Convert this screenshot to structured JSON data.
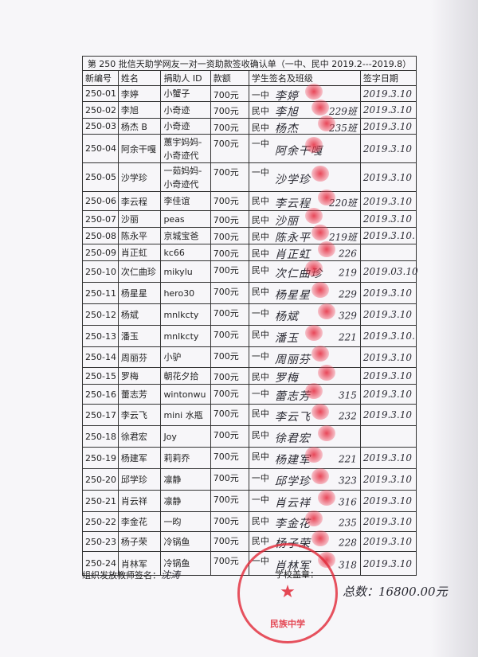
{
  "title": "第 250 批信天助学网友一对一资助款签收确认单（一中、民中 2019.2---2019.8）",
  "columns": [
    "新编号",
    "姓名",
    "捐助人 ID",
    "款额",
    "学生签名及班级",
    "签字日期"
  ],
  "rows": [
    {
      "id": "250-01",
      "name": "李婷",
      "donor": "小蟹子",
      "amount": "700元",
      "school": "一中",
      "signature": "李婷",
      "class": "",
      "date": "2019.3.10"
    },
    {
      "id": "250-02",
      "name": "李旭",
      "donor": "小奇迹",
      "amount": "700元",
      "school": "民中",
      "signature": "李旭",
      "class": "229班",
      "date": "2019.3.10"
    },
    {
      "id": "250-03",
      "name": "杨杰 B",
      "donor": "小奇迹",
      "amount": "700元",
      "school": "民中",
      "signature": "杨杰",
      "class": "235班",
      "date": "2019.3.10"
    },
    {
      "id": "250-04",
      "name": "阿余干嘎",
      "donor": "蕙宇妈妈-小奇迹代",
      "amount": "700元",
      "school": "一中",
      "signature": "阿余干嘎",
      "class": "",
      "date": "2019.3.10"
    },
    {
      "id": "250-05",
      "name": "沙学珍",
      "donor": "一茹妈妈-小奇迹代",
      "amount": "700元",
      "school": "一中",
      "signature": "沙学珍",
      "class": "",
      "date": "2019.3.10"
    },
    {
      "id": "250-06",
      "name": "李云程",
      "donor": "李佳谊",
      "amount": "700元",
      "school": "民中",
      "signature": "李云程",
      "class": "220班",
      "date": "2019.3.10"
    },
    {
      "id": "250-07",
      "name": "沙丽",
      "donor": "peas",
      "amount": "700元",
      "school": "民中",
      "signature": "沙丽",
      "class": "",
      "date": "2019.3.10"
    },
    {
      "id": "250-08",
      "name": "陈永平",
      "donor": "京城宝爸",
      "amount": "700元",
      "school": "民中",
      "signature": "陈永平",
      "class": "219班",
      "date": "2019.3.10."
    },
    {
      "id": "250-09",
      "name": "肖正虹",
      "donor": "kc66",
      "amount": "700元",
      "school": "民中",
      "signature": "肖正虹",
      "class": "226",
      "date": ""
    },
    {
      "id": "250-10",
      "name": "次仁曲珍",
      "donor": "mikylu",
      "amount": "700元",
      "school": "民中",
      "signature": "次仁曲珍",
      "class": "219",
      "date": "2019.03.10"
    },
    {
      "id": "250-11",
      "name": "杨星星",
      "donor": "hero30",
      "amount": "700元",
      "school": "民中",
      "signature": "杨星星",
      "class": "229",
      "date": "2019.3.10"
    },
    {
      "id": "250-12",
      "name": "杨斌",
      "donor": "mnlkcty",
      "amount": "700元",
      "school": "一中",
      "signature": "杨斌",
      "class": "329",
      "date": "2019.3.10"
    },
    {
      "id": "250-13",
      "name": "潘玉",
      "donor": "mnlkcty",
      "amount": "700元",
      "school": "民中",
      "signature": "潘玉",
      "class": "221",
      "date": "2019.3.10."
    },
    {
      "id": "250-14",
      "name": "周丽芬",
      "donor": "小驴",
      "amount": "700元",
      "school": "一中",
      "signature": "周丽芬",
      "class": "",
      "date": "2019.3.10"
    },
    {
      "id": "250-15",
      "name": "罗梅",
      "donor": "朝花夕拾",
      "amount": "700元",
      "school": "民中",
      "signature": "罗梅",
      "class": "",
      "date": "2019.3.10"
    },
    {
      "id": "250-16",
      "name": "蕾志芳",
      "donor": "wintonwu",
      "amount": "700元",
      "school": "一中",
      "signature": "蕾志芳",
      "class": "315",
      "date": "2019.3.10"
    },
    {
      "id": "250-17",
      "name": "李云飞",
      "donor": "mini 水瓶",
      "amount": "700元",
      "school": "民中",
      "signature": "李云飞",
      "class": "232",
      "date": "2019.3.10"
    },
    {
      "id": "250-18",
      "name": "徐君宏",
      "donor": "Joy",
      "amount": "700元",
      "school": "民中",
      "signature": "徐君宏",
      "class": "",
      "date": ""
    },
    {
      "id": "250-19",
      "name": "杨建军",
      "donor": "莉莉乔",
      "amount": "700元",
      "school": "民中",
      "signature": "杨建军",
      "class": "221",
      "date": "2019.3.10"
    },
    {
      "id": "250-20",
      "name": "邱学珍",
      "donor": "凛静",
      "amount": "700元",
      "school": "一中",
      "signature": "邱学珍",
      "class": "323",
      "date": "2019.3.10"
    },
    {
      "id": "250-21",
      "name": "肖云祥",
      "donor": "凛静",
      "amount": "700元",
      "school": "一中",
      "signature": "肖云祥",
      "class": "316",
      "date": "2019.3.10"
    },
    {
      "id": "250-22",
      "name": "李金花",
      "donor": "一昀",
      "amount": "700元",
      "school": "民中",
      "signature": "李金花",
      "class": "235",
      "date": "2019.3.10"
    },
    {
      "id": "250-23",
      "name": "杨子荣",
      "donor": "冷锅鱼",
      "amount": "700元",
      "school": "民中",
      "signature": "杨子荣",
      "class": "228",
      "date": "2019.3.10"
    },
    {
      "id": "250-24",
      "name": "肖林军",
      "donor": "冷锅鱼",
      "amount": "700元",
      "school": "一中",
      "signature": "肖林军",
      "class": "318",
      "date": "2019.3.10"
    }
  ],
  "footer": {
    "teacher_label": "组织发放教师签名：",
    "teacher_signature": "沈涛",
    "stamp_label": "学校盖章：",
    "total": "总数：16800.00元",
    "stamp_text": "民族中学"
  },
  "colors": {
    "ink": "#2a2a33",
    "stamp_red": "#e1283a"
  }
}
